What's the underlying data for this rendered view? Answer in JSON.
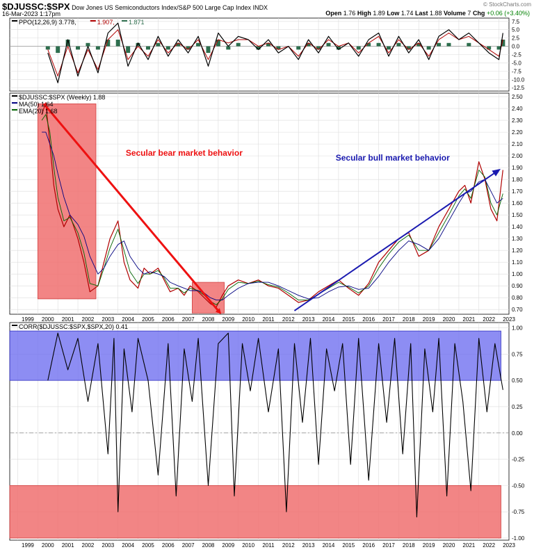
{
  "header": {
    "symbol": "$DJUSSC:$SPX",
    "description": "Dow Jones US Semiconductors Index/S&P 500 Large Cap Index",
    "exchange": "INDX",
    "date": "16-Mar-2023 1:17pm",
    "logo": "© StockCharts.com",
    "open_label": "Open",
    "open_value": "1.76",
    "high_label": "High",
    "high_value": "1.89",
    "low_label": "Low",
    "low_value": "1.74",
    "last_label": "Last",
    "last_value": "1.88",
    "volume_label": "Volume",
    "volume_value": "7",
    "chg_label": "Chg",
    "chg_value": "+0.06 (+3.40%)",
    "chg_color": "#008000"
  },
  "colors": {
    "price": "#b00000",
    "ma50": "#000080",
    "ema20": "#006400",
    "ppo_line": "#000000",
    "ppo_signal": "#b00000",
    "ppo_hist": "#2e6e4e",
    "bear_box": "#f07070",
    "bull_box": "#7070f0",
    "bear_arrow": "#ee1111",
    "bull_arrow": "#1a1ab0"
  },
  "chart_data": [
    {
      "type": "line",
      "title": "PPO(12,26,9)",
      "legend": [
        {
          "text": "PPO(12,26,9) 3.778,",
          "color": "#000000"
        },
        {
          "text": "1.907,",
          "color": "#b00000"
        },
        {
          "text": "1.871",
          "color": "#2e6e4e"
        }
      ],
      "yticks": [
        "7.5",
        "5.0",
        "2.5",
        "0.0",
        "-2.5",
        "-5.0",
        "-7.5",
        "-10.0",
        "-12.5"
      ],
      "ylim": [
        -13.5,
        8.5
      ],
      "x": [
        2000.5,
        2001.0,
        2001.5,
        2002.0,
        2002.5,
        2003.0,
        2003.5,
        2004.0,
        2004.5,
        2005.0,
        2005.5,
        2006.0,
        2006.5,
        2007.0,
        2007.5,
        2008.0,
        2008.5,
        2009.0,
        2009.5,
        2010.0,
        2010.5,
        2011.0,
        2011.5,
        2012.0,
        2012.5,
        2013.0,
        2013.5,
        2014.0,
        2014.5,
        2015.0,
        2015.5,
        2016.0,
        2016.5,
        2017.0,
        2017.5,
        2018.0,
        2018.5,
        2019.0,
        2019.5,
        2020.0,
        2020.5,
        2021.0,
        2021.5,
        2022.0,
        2022.5,
        2023.0,
        2023.2
      ],
      "series": [
        {
          "name": "PPO",
          "values": [
            -2,
            -11,
            2,
            -9,
            0,
            -8,
            4,
            7,
            -6,
            1,
            -4,
            3,
            -3,
            2,
            -2,
            3,
            -6,
            4,
            0,
            3,
            2,
            -1,
            2,
            -2,
            0,
            -4,
            2,
            -2,
            3,
            -1,
            1,
            -3,
            2,
            4,
            -3,
            3,
            -2,
            2,
            -4,
            3,
            5,
            2,
            4,
            1,
            -2,
            -4,
            4
          ]
        },
        {
          "name": "Signal",
          "values": [
            -1,
            -9,
            0,
            -8,
            -1,
            -7,
            2,
            5,
            -4,
            0,
            -3,
            2,
            -2,
            1,
            -1,
            2,
            -4,
            2,
            1,
            2,
            2,
            0,
            1,
            -1,
            0,
            -3,
            1,
            -1,
            2,
            0,
            1,
            -2,
            1,
            3,
            -2,
            2,
            -1,
            1,
            -3,
            2,
            4,
            2,
            3,
            1,
            -1,
            -3,
            2
          ]
        }
      ]
    },
    {
      "type": "line",
      "title": "$DJUSSC:$SPX (Weekly) 1.88",
      "legend": [
        {
          "text": "$DJUSSC:$SPX (Weekly) 1.88",
          "color": "#000000"
        },
        {
          "text": "MA(50) 1.64",
          "color": "#000080"
        },
        {
          "text": "EMA(20) 1.68",
          "color": "#006400"
        }
      ],
      "yticks": [
        "2.50",
        "2.40",
        "2.30",
        "2.20",
        "2.10",
        "2.00",
        "1.90",
        "1.80",
        "1.70",
        "1.60",
        "1.50",
        "1.40",
        "1.30",
        "1.20",
        "1.10",
        "1.00",
        "0.90",
        "0.80",
        "0.70"
      ],
      "ylim": [
        0.66,
        2.53
      ],
      "annotations": [
        {
          "text": "Secular bear market behavior",
          "color": "#ee1111"
        },
        {
          "text": "Secular bull market behavior",
          "color": "#1a1ab0"
        }
      ],
      "x": [
        2000.2,
        2000.4,
        2000.6,
        2000.8,
        2001.0,
        2001.3,
        2001.6,
        2002.0,
        2002.3,
        2002.6,
        2003.0,
        2003.3,
        2003.6,
        2004.0,
        2004.3,
        2004.6,
        2005.0,
        2005.3,
        2005.6,
        2006.0,
        2006.3,
        2006.6,
        2007.0,
        2007.3,
        2007.6,
        2008.0,
        2008.3,
        2008.6,
        2008.9,
        2009.2,
        2009.5,
        2010.0,
        2010.5,
        2011.0,
        2011.5,
        2012.0,
        2012.5,
        2013.0,
        2013.5,
        2014.0,
        2014.5,
        2015.0,
        2015.5,
        2016.0,
        2016.5,
        2017.0,
        2017.5,
        2018.0,
        2018.5,
        2019.0,
        2019.5,
        2020.0,
        2020.5,
        2021.0,
        2021.3,
        2021.6,
        2022.0,
        2022.3,
        2022.6,
        2022.9,
        2023.2
      ],
      "series": [
        {
          "name": "$DJUSSC:$SPX",
          "values": [
            2.35,
            2.45,
            2.1,
            1.75,
            1.55,
            1.4,
            1.5,
            1.3,
            1.1,
            0.85,
            0.9,
            1.1,
            1.3,
            1.45,
            1.1,
            0.95,
            0.88,
            1.05,
            1.0,
            1.05,
            0.95,
            0.85,
            0.88,
            0.82,
            0.9,
            0.85,
            0.8,
            0.75,
            0.72,
            0.82,
            0.9,
            0.95,
            0.92,
            0.95,
            0.9,
            0.88,
            0.82,
            0.76,
            0.78,
            0.85,
            0.9,
            0.95,
            0.88,
            0.82,
            0.92,
            1.1,
            1.2,
            1.3,
            1.35,
            1.15,
            1.2,
            1.4,
            1.55,
            1.7,
            1.75,
            1.6,
            1.95,
            1.8,
            1.55,
            1.45,
            1.88
          ]
        },
        {
          "name": "MA(50)",
          "values": [
            2.2,
            2.2,
            2.1,
            2.0,
            1.85,
            1.65,
            1.5,
            1.42,
            1.32,
            1.15,
            1.0,
            1.05,
            1.15,
            1.25,
            1.28,
            1.15,
            1.05,
            1.0,
            1.02,
            1.0,
            0.98,
            0.93,
            0.9,
            0.88,
            0.86,
            0.86,
            0.84,
            0.8,
            0.78,
            0.78,
            0.82,
            0.88,
            0.92,
            0.93,
            0.93,
            0.9,
            0.86,
            0.82,
            0.79,
            0.8,
            0.85,
            0.89,
            0.9,
            0.87,
            0.88,
            0.98,
            1.1,
            1.2,
            1.28,
            1.25,
            1.2,
            1.3,
            1.45,
            1.6,
            1.68,
            1.7,
            1.78,
            1.8,
            1.7,
            1.6,
            1.64
          ]
        },
        {
          "name": "EMA(20)",
          "values": [
            2.3,
            2.35,
            2.2,
            1.9,
            1.65,
            1.45,
            1.48,
            1.35,
            1.18,
            0.92,
            0.9,
            1.05,
            1.22,
            1.38,
            1.2,
            1.02,
            0.92,
            1.0,
            1.0,
            1.03,
            0.97,
            0.88,
            0.88,
            0.84,
            0.88,
            0.86,
            0.82,
            0.77,
            0.74,
            0.79,
            0.87,
            0.93,
            0.92,
            0.94,
            0.91,
            0.89,
            0.84,
            0.78,
            0.78,
            0.83,
            0.88,
            0.93,
            0.89,
            0.84,
            0.9,
            1.05,
            1.17,
            1.27,
            1.33,
            1.2,
            1.2,
            1.35,
            1.5,
            1.66,
            1.72,
            1.64,
            1.88,
            1.82,
            1.6,
            1.5,
            1.68
          ]
        }
      ]
    },
    {
      "type": "line",
      "title": "CORR($DJUSSC:$SPX,$SPX,20)",
      "legend": [
        {
          "text": "CORR($DJUSSC:$SPX,$SPX,20) 0.41",
          "color": "#000000"
        }
      ],
      "yticks": [
        "1.00",
        "0.75",
        "0.50",
        "0.25",
        "0.00",
        "-0.25",
        "-0.50",
        "-0.75",
        "-1.00"
      ],
      "ylim": [
        -1.02,
        1.05
      ],
      "x": [
        2000.5,
        2001.0,
        2001.5,
        2002.0,
        2002.5,
        2003.0,
        2003.5,
        2003.8,
        2004.0,
        2004.3,
        2004.7,
        2005.0,
        2005.5,
        2006.0,
        2006.5,
        2006.9,
        2007.3,
        2007.7,
        2008.0,
        2008.5,
        2009.0,
        2009.5,
        2009.8,
        2010.2,
        2010.6,
        2011.0,
        2011.5,
        2012.0,
        2012.4,
        2012.8,
        2013.2,
        2013.6,
        2014.0,
        2014.4,
        2014.8,
        2015.2,
        2015.6,
        2016.0,
        2016.5,
        2017.0,
        2017.4,
        2017.8,
        2018.2,
        2018.6,
        2018.9,
        2019.3,
        2019.7,
        2020.0,
        2020.4,
        2020.8,
        2021.2,
        2021.6,
        2022.0,
        2022.4,
        2022.8,
        2023.2
      ],
      "series": [
        {
          "name": "CORR",
          "values": [
            0.5,
            0.95,
            0.6,
            0.9,
            0.3,
            0.85,
            -0.2,
            0.9,
            -0.75,
            0.8,
            0.2,
            0.9,
            0.5,
            -0.4,
            0.85,
            -0.6,
            0.8,
            0.3,
            0.9,
            -0.5,
            0.85,
            0.95,
            -0.6,
            0.85,
            0.4,
            0.9,
            0.2,
            0.8,
            -0.75,
            0.85,
            0.1,
            0.9,
            -0.3,
            0.8,
            0.4,
            0.85,
            -0.3,
            0.9,
            -0.45,
            0.85,
            0.1,
            0.9,
            -0.2,
            0.85,
            -0.8,
            0.8,
            0.2,
            0.9,
            -0.6,
            0.85,
            0.3,
            -0.55,
            0.9,
            0.2,
            0.85,
            0.41
          ]
        }
      ]
    }
  ],
  "x_axis": {
    "years": [
      "1999",
      "2000",
      "2001",
      "2002",
      "2003",
      "2004",
      "2005",
      "2006",
      "2007",
      "2008",
      "2009",
      "2010",
      "2011",
      "2012",
      "2013",
      "2014",
      "2015",
      "2016",
      "2017",
      "2018",
      "2019",
      "2020",
      "2021",
      "2022",
      "2023"
    ]
  }
}
